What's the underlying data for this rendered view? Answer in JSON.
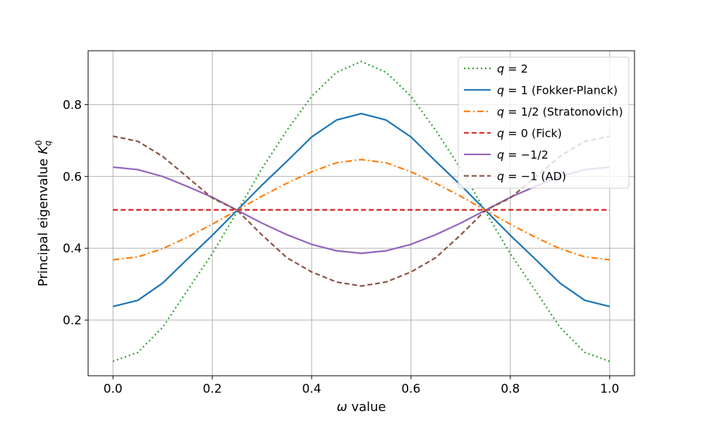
{
  "chart_data": {
    "type": "line",
    "title": "",
    "xlabel": "ω value",
    "ylabel": "Principal eigenvalue",
    "ylabel_symbol": "K",
    "ylabel_sub": "q",
    "ylabel_sup": "0",
    "xlim": [
      -0.05,
      1.05
    ],
    "ylim": [
      0.045,
      0.95
    ],
    "xticks": [
      0.0,
      0.2,
      0.4,
      0.6,
      0.8,
      1.0
    ],
    "xtick_labels": [
      "0.0",
      "0.2",
      "0.4",
      "0.6",
      "0.8",
      "1.0"
    ],
    "yticks": [
      0.2,
      0.4,
      0.6,
      0.8
    ],
    "ytick_labels": [
      "0.2",
      "0.4",
      "0.6",
      "0.8"
    ],
    "grid": true,
    "legend_position": "top-right",
    "x": [
      0.0,
      0.05,
      0.1,
      0.15,
      0.2,
      0.25,
      0.3,
      0.35,
      0.4,
      0.45,
      0.5,
      0.55,
      0.6,
      0.65,
      0.7,
      0.75,
      0.8,
      0.85,
      0.9,
      0.95,
      1.0
    ],
    "series": [
      {
        "name": "q = 2",
        "color": "#2ca02c",
        "dash": "dotted",
        "values": [
          0.085,
          0.11,
          0.18,
          0.283,
          0.385,
          0.502,
          0.622,
          0.728,
          0.823,
          0.89,
          0.92,
          0.89,
          0.823,
          0.728,
          0.622,
          0.502,
          0.385,
          0.283,
          0.18,
          0.11,
          0.085
        ]
      },
      {
        "name": "q = 1 (Fokker-Planck)",
        "color": "#1f77b4",
        "dash": "solid",
        "values": [
          0.238,
          0.255,
          0.303,
          0.37,
          0.436,
          0.506,
          0.576,
          0.642,
          0.71,
          0.757,
          0.775,
          0.757,
          0.71,
          0.642,
          0.576,
          0.506,
          0.436,
          0.37,
          0.303,
          0.255,
          0.238
        ]
      },
      {
        "name": "q = 1/2 (Stratonovich)",
        "color": "#ff7f0e",
        "dash": "dashdot",
        "values": [
          0.368,
          0.376,
          0.399,
          0.431,
          0.467,
          0.506,
          0.545,
          0.581,
          0.613,
          0.638,
          0.647,
          0.638,
          0.613,
          0.581,
          0.545,
          0.506,
          0.467,
          0.431,
          0.399,
          0.376,
          0.368
        ]
      },
      {
        "name": "q = 0 (Fick)",
        "color": "#d62728",
        "dash": "dashed",
        "values": [
          0.507,
          0.507,
          0.507,
          0.507,
          0.507,
          0.507,
          0.507,
          0.507,
          0.507,
          0.507,
          0.507,
          0.507,
          0.507,
          0.507,
          0.507,
          0.507,
          0.507,
          0.507,
          0.507,
          0.507,
          0.507
        ]
      },
      {
        "name": "q = −1/2",
        "color": "#9467bd",
        "dash": "solid",
        "values": [
          0.626,
          0.619,
          0.6,
          0.572,
          0.542,
          0.506,
          0.47,
          0.438,
          0.411,
          0.393,
          0.386,
          0.393,
          0.411,
          0.438,
          0.47,
          0.506,
          0.542,
          0.572,
          0.6,
          0.619,
          0.626
        ]
      },
      {
        "name": "q = −1 (AD)",
        "color": "#8c564b",
        "dash": "dashed",
        "values": [
          0.712,
          0.698,
          0.656,
          0.598,
          0.54,
          0.506,
          0.437,
          0.374,
          0.334,
          0.306,
          0.295,
          0.306,
          0.334,
          0.374,
          0.437,
          0.506,
          0.54,
          0.598,
          0.656,
          0.698,
          0.712
        ]
      }
    ]
  }
}
